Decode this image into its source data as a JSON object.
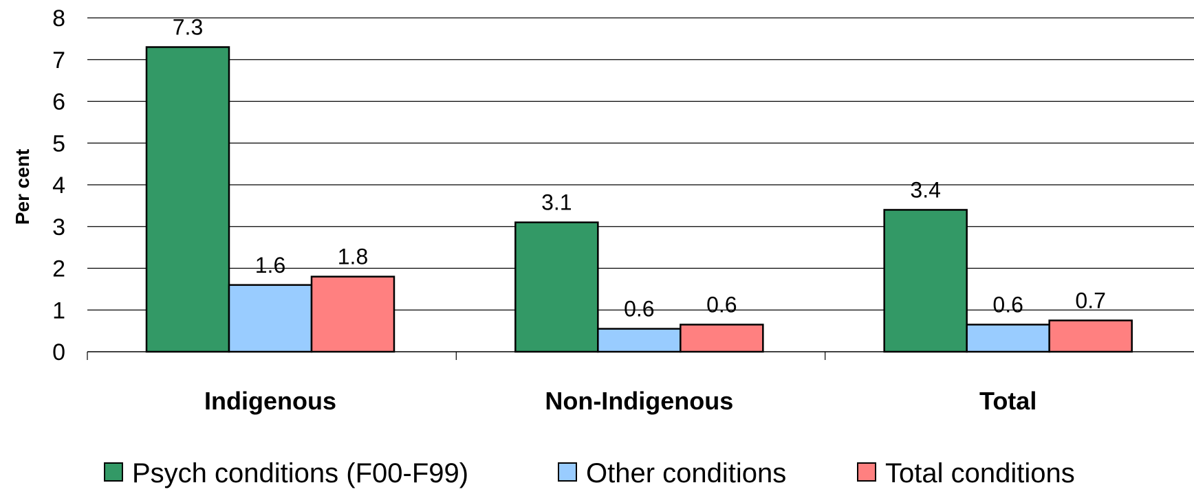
{
  "chart_data": {
    "type": "bar",
    "title": "",
    "xlabel": "",
    "ylabel": "Per cent",
    "categories": [
      "Indigenous",
      "Non-Indigenous",
      "Total"
    ],
    "series": [
      {
        "name": "Psych conditions (F00-F99)",
        "color": "#339966",
        "values": [
          7.3,
          3.1,
          3.4
        ],
        "labels": [
          "7.3",
          "3.1",
          "3.4"
        ]
      },
      {
        "name": "Other conditions",
        "color": "#99CCFF",
        "values": [
          1.6,
          0.55,
          0.65
        ],
        "labels": [
          "1.6",
          "0.6",
          "0.6"
        ]
      },
      {
        "name": "Total  conditions",
        "color": "#FF8080",
        "values": [
          1.8,
          0.65,
          0.75
        ],
        "labels": [
          "1.8",
          "0.6",
          "0.7"
        ]
      }
    ],
    "ylim": [
      0,
      8
    ],
    "yticks": [
      "0",
      "1",
      "2",
      "3",
      "4",
      "5",
      "6",
      "7",
      "8"
    ],
    "grid": true,
    "legend_position": "bottom"
  }
}
